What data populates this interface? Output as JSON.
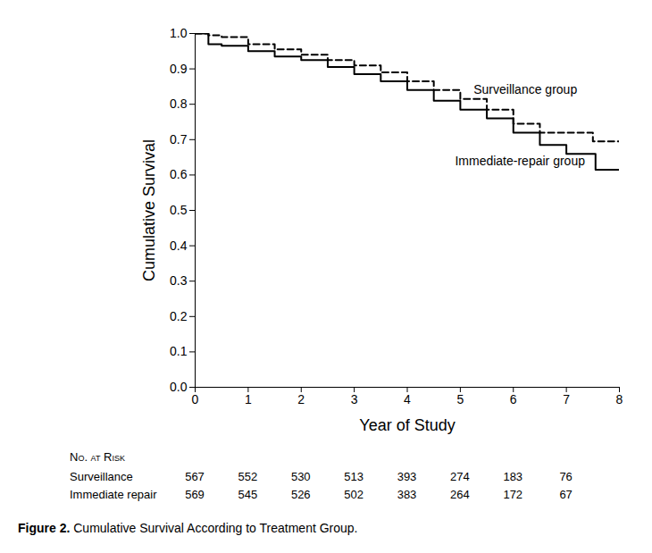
{
  "chart_data": {
    "type": "line",
    "x_label": "Year of Study",
    "y_label": "Cumulative Survival",
    "x": [
      0,
      0.25,
      0.5,
      1,
      1.5,
      2,
      2.5,
      3,
      3.5,
      4,
      4.5,
      5,
      5.5,
      6,
      6.5,
      7,
      7.5,
      7.55,
      8
    ],
    "series": [
      {
        "name": "Surveillance group",
        "color": "#000000",
        "line_style": "dashed",
        "marker": "none",
        "values": [
          1.0,
          0.995,
          0.99,
          0.97,
          0.955,
          0.94,
          0.925,
          0.91,
          0.89,
          0.865,
          0.84,
          0.815,
          0.785,
          0.745,
          0.72,
          0.72,
          0.695,
          0.695,
          0.695
        ]
      },
      {
        "name": "Immediate-repair group",
        "color": "#000000",
        "line_style": "solid",
        "marker": "none",
        "values": [
          1.0,
          0.97,
          0.965,
          0.95,
          0.935,
          0.925,
          0.905,
          0.885,
          0.865,
          0.84,
          0.81,
          0.785,
          0.76,
          0.72,
          0.685,
          0.66,
          0.66,
          0.615,
          0.615
        ]
      }
    ],
    "annotations": [
      {
        "text": "Surveillance group",
        "x": 5.25,
        "y": 0.84
      },
      {
        "text": "Immediate-repair group",
        "x": 4.9,
        "y": 0.64
      }
    ],
    "xlim": [
      0,
      8
    ],
    "xticks": [
      0,
      1,
      2,
      3,
      4,
      5,
      6,
      7,
      8
    ],
    "ylim": [
      0,
      1
    ],
    "yticks": [
      {
        "value": 0,
        "label": "0.0"
      },
      0.1,
      0.2,
      0.3,
      0.4,
      0.5,
      0.6,
      0.7,
      0.8,
      0.9,
      {
        "value": 1,
        "label": "1.0"
      }
    ],
    "grid": false,
    "at_risk": {
      "title": "No. at Risk",
      "x": [
        0,
        1,
        2,
        3,
        4,
        5,
        6,
        7
      ],
      "rows": [
        {
          "name": "Surveillance",
          "values": [
            567,
            552,
            530,
            513,
            393,
            274,
            183,
            76
          ]
        },
        {
          "name": "Immediate repair",
          "values": [
            569,
            545,
            526,
            502,
            383,
            264,
            172,
            67
          ]
        }
      ]
    },
    "caption_label": "Figure 2.",
    "caption": "Cumulative Survival According to Treatment Group."
  }
}
